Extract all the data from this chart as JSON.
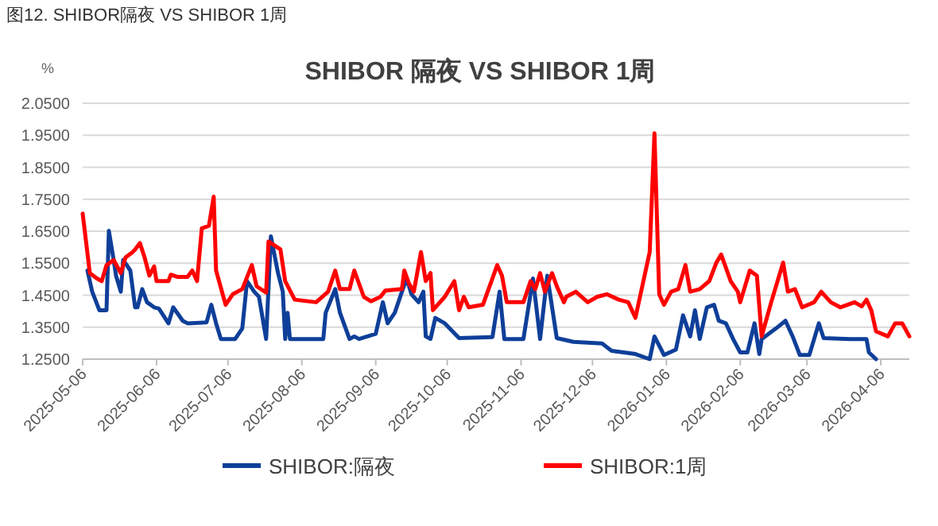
{
  "chart_data": {
    "type": "line",
    "title": "图12. SHIBOR隔夜 VS SHIBOR 1周",
    "subtitle": "SHIBOR 隔夜 VS SHIBOR 1周",
    "ylabel": "%",
    "grid": "y",
    "legend": "bottom",
    "marker": "none",
    "line_style": "solid",
    "xlim": [
      "2025-05-06",
      "2026-04-18"
    ],
    "xticks": [
      {
        "value": "2025-05-06",
        "label": "2025-05-06"
      },
      {
        "value": "2025-06-06",
        "label": "2025-06-06"
      },
      {
        "value": "2025-07-06",
        "label": "2025-07-06"
      },
      {
        "value": "2025-08-06",
        "label": "2025-08-06"
      },
      {
        "value": "2025-09-06",
        "label": "2025-09-06"
      },
      {
        "value": "2025-10-06",
        "label": "2025-10-06"
      },
      {
        "value": "2025-11-06",
        "label": "2025-11-06"
      },
      {
        "value": "2025-12-06",
        "label": "2025-12-06"
      },
      {
        "value": "2026-01-06",
        "label": "2026-01-06"
      },
      {
        "value": "2026-02-06",
        "label": "2026-02-06"
      },
      {
        "value": "2026-03-06",
        "label": "2026-03-06"
      },
      {
        "value": "2026-04-06",
        "label": "2026-04-06"
      }
    ],
    "ylim": [
      1.25,
      2.05
    ],
    "yticks": [
      {
        "value": 1.25,
        "label": "1.2500"
      },
      {
        "value": 1.35,
        "label": "1.3500"
      },
      {
        "value": 1.45,
        "label": "1.4500"
      },
      {
        "value": 1.55,
        "label": "1.5500"
      },
      {
        "value": 1.65,
        "label": "1.6500"
      },
      {
        "value": 1.75,
        "label": "1.7500"
      },
      {
        "value": 1.85,
        "label": "1.8500"
      },
      {
        "value": 1.95,
        "label": "1.9500"
      },
      {
        "value": 2.05,
        "label": "2.0500"
      }
    ],
    "series": [
      {
        "name": "SHIBOR:隔夜",
        "color": "#0f3f99",
        "x": [
          "2025-05-08",
          "2025-05-10",
          "2025-05-13",
          "2025-05-16",
          "2025-05-17",
          "2025-05-19",
          "2025-05-20",
          "2025-05-22",
          "2025-05-23",
          "2025-05-26",
          "2025-05-28",
          "2025-05-29",
          "2025-05-31",
          "2025-06-02",
          "2025-06-05",
          "2025-06-07",
          "2025-06-11",
          "2025-06-13",
          "2025-06-17",
          "2025-06-19",
          "2025-06-27",
          "2025-06-29",
          "2025-07-01",
          "2025-07-03",
          "2025-07-09",
          "2025-07-12",
          "2025-07-14",
          "2025-07-17",
          "2025-07-19",
          "2025-07-22",
          "2025-07-24",
          "2025-07-27",
          "2025-07-29",
          "2025-07-30",
          "2025-07-31",
          "2025-08-01",
          "2025-08-15",
          "2025-08-16",
          "2025-08-20",
          "2025-08-22",
          "2025-08-26",
          "2025-08-28",
          "2025-08-30",
          "2025-09-06",
          "2025-09-09",
          "2025-09-11",
          "2025-09-14",
          "2025-09-17",
          "2025-09-19",
          "2025-09-21",
          "2025-09-24",
          "2025-09-26",
          "2025-09-27",
          "2025-09-29",
          "2025-10-01",
          "2025-10-05",
          "2025-10-11",
          "2025-10-25",
          "2025-10-28",
          "2025-10-30",
          "2025-11-07",
          "2025-11-11",
          "2025-11-14",
          "2025-11-17",
          "2025-11-21",
          "2025-11-28",
          "2025-12-10",
          "2025-12-14",
          "2025-12-24",
          "2025-12-30",
          "2026-01-01",
          "2026-01-05",
          "2026-01-10",
          "2026-01-13",
          "2026-01-16",
          "2026-01-18",
          "2026-01-20",
          "2026-01-23",
          "2026-01-26",
          "2026-01-28",
          "2026-01-31",
          "2026-02-03",
          "2026-02-06",
          "2026-02-09",
          "2026-02-12",
          "2026-02-14",
          "2026-02-15",
          "2026-02-21",
          "2026-02-25",
          "2026-02-28",
          "2026-03-03",
          "2026-03-07",
          "2026-03-11",
          "2026-03-13",
          "2026-03-24",
          "2026-03-31",
          "2026-04-01",
          "2026-04-04"
        ],
        "values": [
          1.527,
          1.461,
          1.403,
          1.403,
          1.651,
          1.56,
          1.511,
          1.461,
          1.56,
          1.527,
          1.412,
          1.412,
          1.469,
          1.428,
          1.412,
          1.408,
          1.362,
          1.412,
          1.37,
          1.362,
          1.365,
          1.42,
          1.362,
          1.313,
          1.313,
          1.346,
          1.494,
          1.461,
          1.445,
          1.313,
          1.634,
          1.519,
          1.461,
          1.313,
          1.395,
          1.313,
          1.313,
          1.395,
          1.469,
          1.395,
          1.313,
          1.321,
          1.313,
          1.329,
          1.428,
          1.362,
          1.395,
          1.461,
          1.502,
          1.453,
          1.428,
          1.461,
          1.321,
          1.313,
          1.379,
          1.362,
          1.316,
          1.319,
          1.461,
          1.313,
          1.313,
          1.502,
          1.313,
          1.511,
          1.316,
          1.304,
          1.299,
          1.276,
          1.266,
          1.25,
          1.321,
          1.263,
          1.28,
          1.387,
          1.321,
          1.403,
          1.313,
          1.412,
          1.42,
          1.37,
          1.362,
          1.313,
          1.271,
          1.271,
          1.362,
          1.266,
          1.313,
          1.346,
          1.37,
          1.321,
          1.263,
          1.263,
          1.362,
          1.316,
          1.313,
          1.313,
          1.271,
          1.25
        ]
      },
      {
        "name": "SHIBOR:1周",
        "color": "#ff0000",
        "x": [
          "2025-05-06",
          "2025-05-09",
          "2025-05-12",
          "2025-05-14",
          "2025-05-16",
          "2025-05-19",
          "2025-05-22",
          "2025-05-24",
          "2025-05-27",
          "2025-05-28",
          "2025-05-30",
          "2025-06-01",
          "2025-06-03",
          "2025-06-05",
          "2025-06-06",
          "2025-06-11",
          "2025-06-12",
          "2025-06-15",
          "2025-06-19",
          "2025-06-21",
          "2025-06-23",
          "2025-06-25",
          "2025-06-28",
          "2025-06-30",
          "2025-07-01",
          "2025-07-05",
          "2025-07-08",
          "2025-07-12",
          "2025-07-16",
          "2025-07-18",
          "2025-07-22",
          "2025-07-23",
          "2025-07-28",
          "2025-07-30",
          "2025-08-03",
          "2025-08-12",
          "2025-08-17",
          "2025-08-20",
          "2025-08-22",
          "2025-08-26",
          "2025-08-28",
          "2025-09-01",
          "2025-09-04",
          "2025-09-08",
          "2025-09-10",
          "2025-09-17",
          "2025-09-18",
          "2025-09-20",
          "2025-09-22",
          "2025-09-25",
          "2025-09-27",
          "2025-09-29",
          "2025-09-30",
          "2025-10-05",
          "2025-10-09",
          "2025-10-11",
          "2025-10-13",
          "2025-10-15",
          "2025-10-21",
          "2025-10-27",
          "2025-10-29",
          "2025-10-31",
          "2025-11-07",
          "2025-11-10",
          "2025-11-12",
          "2025-11-14",
          "2025-11-16",
          "2025-11-19",
          "2025-11-21",
          "2025-11-24",
          "2025-11-25",
          "2025-11-29",
          "2025-12-04",
          "2025-12-08",
          "2025-12-12",
          "2025-12-17",
          "2025-12-21",
          "2025-12-24",
          "2025-12-30",
          "2026-01-01",
          "2026-01-03",
          "2026-01-05",
          "2026-01-08",
          "2026-01-11",
          "2026-01-14",
          "2026-01-16",
          "2026-01-20",
          "2026-01-24",
          "2026-01-27",
          "2026-01-29",
          "2026-02-02",
          "2026-02-05",
          "2026-02-06",
          "2026-02-10",
          "2026-02-13",
          "2026-02-15",
          "2026-02-19",
          "2026-02-24",
          "2026-02-26",
          "2026-03-01",
          "2026-03-04",
          "2026-03-09",
          "2026-03-12",
          "2026-03-16",
          "2026-03-20",
          "2026-03-26",
          "2026-03-29",
          "2026-03-31",
          "2026-04-02",
          "2026-04-04",
          "2026-04-09",
          "2026-04-12",
          "2026-04-15",
          "2026-04-18"
        ],
        "values": [
          1.705,
          1.519,
          1.502,
          1.494,
          1.544,
          1.56,
          1.519,
          1.568,
          1.585,
          1.593,
          1.613,
          1.568,
          1.511,
          1.54,
          1.494,
          1.494,
          1.514,
          1.507,
          1.507,
          1.527,
          1.494,
          1.659,
          1.667,
          1.758,
          1.527,
          1.42,
          1.453,
          1.469,
          1.544,
          1.478,
          1.458,
          1.618,
          1.593,
          1.494,
          1.436,
          1.428,
          1.461,
          1.527,
          1.469,
          1.469,
          1.527,
          1.445,
          1.431,
          1.445,
          1.464,
          1.469,
          1.527,
          1.486,
          1.461,
          1.585,
          1.494,
          1.519,
          1.403,
          1.445,
          1.494,
          1.403,
          1.445,
          1.412,
          1.42,
          1.544,
          1.511,
          1.428,
          1.428,
          1.494,
          1.469,
          1.519,
          1.461,
          1.519,
          1.478,
          1.428,
          1.445,
          1.461,
          1.428,
          1.445,
          1.453,
          1.436,
          1.428,
          1.379,
          1.585,
          1.956,
          1.453,
          1.42,
          1.461,
          1.469,
          1.544,
          1.461,
          1.469,
          1.494,
          1.552,
          1.577,
          1.494,
          1.461,
          1.428,
          1.527,
          1.511,
          1.321,
          1.428,
          1.552,
          1.461,
          1.469,
          1.412,
          1.428,
          1.461,
          1.428,
          1.412,
          1.428,
          1.415,
          1.436,
          1.403,
          1.337,
          1.321,
          1.362,
          1.362,
          1.321
        ]
      }
    ]
  }
}
